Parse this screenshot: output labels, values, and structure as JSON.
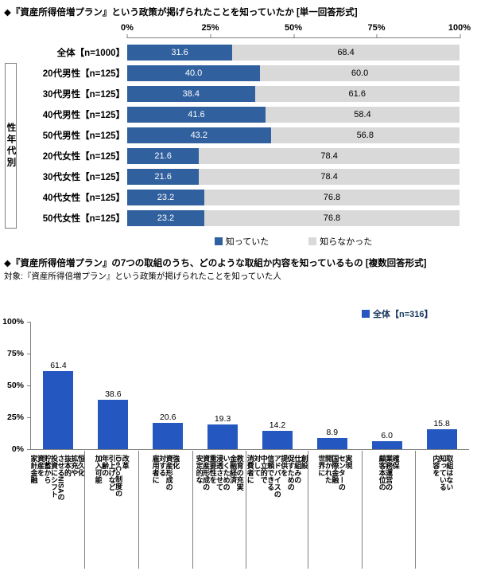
{
  "colors": {
    "aware_blue": "#31609e",
    "unaware_gray": "#d9d9d9",
    "bar_blue": "#2457c0",
    "axis_gray": "#7f7f7f",
    "legend2_text": "#17375e"
  },
  "chart_data": [
    {
      "type": "bar",
      "orientation": "horizontal-stacked",
      "title": "◆『資産所得倍増プラン』という政策が掲げられたことを知っていたか [単一回答形式]",
      "group_label": "性年代別",
      "x_ticks": [
        "0%",
        "25%",
        "50%",
        "75%",
        "100%"
      ],
      "xlim": [
        0,
        100
      ],
      "categories": [
        "全体【n=1000】",
        "20代男性【n=125】",
        "30代男性【n=125】",
        "40代男性【n=125】",
        "50代男性【n=125】",
        "20代女性【n=125】",
        "30代女性【n=125】",
        "40代女性【n=125】",
        "50代女性【n=125】"
      ],
      "series": [
        {
          "name": "知っていた",
          "color": "#31609e",
          "text_color": "#ffffff",
          "values": [
            31.6,
            40.0,
            38.4,
            41.6,
            43.2,
            21.6,
            21.6,
            23.2,
            23.2
          ]
        },
        {
          "name": "知らなかった",
          "color": "#d9d9d9",
          "text_color": "#000000",
          "values": [
            68.4,
            60.0,
            61.6,
            58.4,
            56.8,
            78.4,
            78.4,
            76.8,
            76.8
          ]
        }
      ],
      "legend_position": "bottom"
    },
    {
      "type": "bar",
      "orientation": "vertical",
      "title": "◆『資産所得倍増プラン』の7つの取組のうち、どのような取組か内容を知っているもの [複数回答形式]",
      "subtitle": "対象:『資産所得倍増プラン』という政策が掲げられたことを知っていた人",
      "legend": "全体【n=316】",
      "y_ticks": [
        "100%",
        "75%",
        "50%",
        "25%",
        "0%"
      ],
      "ylim": [
        0,
        100
      ],
      "bar_color": "#2457c0",
      "categories": [
        "家計金融\n資産を\n貯蓄から\n投資にシフト\nさせるNISAの\n抜本的\n拡充や\n恒久化",
        "加入可能\n年齢の\n引上げなど\niDeCo制度の\n改革",
        "雇用者に\n対する\n資産形成の\n強化",
        "安定的な\n資産形成の\n重要性を\n浸透させて\nいくための\n金融経済\n教育の充実",
        "消費者に\n対して\n中立的で\n信頼できる\nアドバイスの\n提供を\n促すための\n仕組みの\n創設",
        "世界に\n開かれた\n国際金融\nセンターの\n実現",
        "顧客本位の\n業務運営の\n確保",
        "内容を\n知っている\n取組はない"
      ],
      "values": [
        61.4,
        38.6,
        20.6,
        19.3,
        14.2,
        8.9,
        6.0,
        15.8
      ]
    }
  ]
}
